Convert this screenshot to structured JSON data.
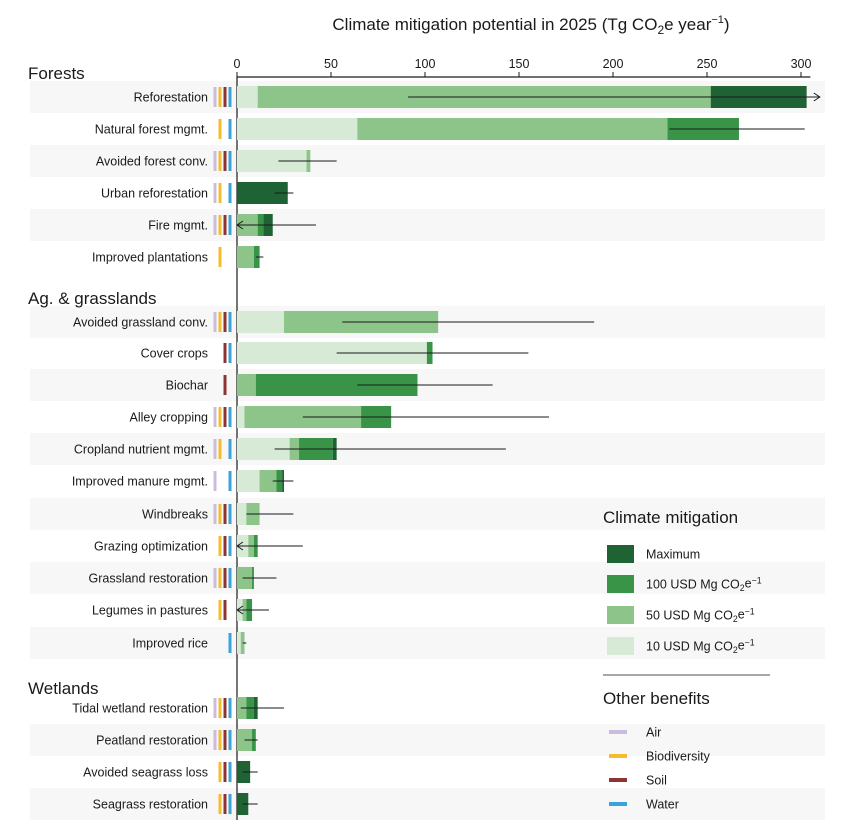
{
  "chart_data": {
    "type": "bar",
    "title": "Climate mitigation potential in 2025 (Tg CO₂e year⁻¹)",
    "title_parts": [
      "Climate mitigation potential in 2025 (Tg CO",
      "2",
      "e year",
      "−1",
      ")"
    ],
    "xlim": [
      0,
      305
    ],
    "xticks": [
      0,
      50,
      100,
      150,
      200,
      250,
      300
    ],
    "grid": false,
    "orientation": "horizontal",
    "stack_levels": [
      "10 USD Mg CO₂e⁻¹",
      "50 USD Mg CO₂e⁻¹",
      "100 USD Mg CO₂e⁻¹",
      "Maximum"
    ],
    "colors": {
      "10": "#d6ead6",
      "50": "#8cc48a",
      "100": "#3a9448",
      "max": "#1f6234",
      "air": "#cdbbdd",
      "biodiversity": "#f5bd2c",
      "soil": "#8c3434",
      "water": "#3aa3da",
      "band": "#f7f7f7"
    },
    "groups": [
      {
        "name": "Forests",
        "rows": [
          {
            "label": "Reforestation",
            "c10": 11,
            "c50": 252,
            "c100": 252,
            "max": 303,
            "err": [
              91,
              310
            ],
            "arrow": "right",
            "benefits": [
              "air",
              "biodiversity",
              "soil",
              "water"
            ]
          },
          {
            "label": "Natural forest mgmt.",
            "c10": 64,
            "c50": 229,
            "c100": 267,
            "max": 267,
            "err": [
              230,
              302
            ],
            "arrow": null,
            "benefits": [
              "biodiversity",
              "water"
            ]
          },
          {
            "label": "Avoided forest conv.",
            "c10": 37,
            "c50": 39,
            "c100": 39,
            "max": 39,
            "err": [
              22,
              53
            ],
            "arrow": null,
            "benefits": [
              "air",
              "biodiversity",
              "soil",
              "water"
            ]
          },
          {
            "label": "Urban reforestation",
            "c10": 0,
            "c50": 0,
            "c100": 0,
            "max": 27,
            "err": [
              20,
              30
            ],
            "arrow": null,
            "benefits": [
              "air",
              "biodiversity",
              "water"
            ]
          },
          {
            "label": "Fire mgmt.",
            "c10": 0,
            "c50": 11,
            "c100": 14,
            "max": 19,
            "err": [
              0,
              42
            ],
            "arrow": "left",
            "benefits": [
              "air",
              "biodiversity",
              "soil",
              "water"
            ]
          },
          {
            "label": "Improved plantations",
            "c10": 0,
            "c50": 9,
            "c100": 12,
            "max": 12,
            "err": [
              10,
              14
            ],
            "arrow": null,
            "benefits": [
              "biodiversity"
            ]
          }
        ]
      },
      {
        "name": "Ag. & grasslands",
        "rows": [
          {
            "label": "Avoided grassland conv.",
            "c10": 25,
            "c50": 107,
            "c100": 107,
            "max": 107,
            "err": [
              56,
              190
            ],
            "arrow": null,
            "benefits": [
              "air",
              "biodiversity",
              "soil",
              "water"
            ]
          },
          {
            "label": "Cover crops",
            "c10": 101,
            "c50": 101,
            "c100": 104,
            "max": 104,
            "err": [
              53,
              155
            ],
            "arrow": null,
            "benefits": [
              "soil",
              "water"
            ]
          },
          {
            "label": "Biochar",
            "c10": 0,
            "c50": 10,
            "c100": 96,
            "max": 96,
            "err": [
              64,
              136
            ],
            "arrow": null,
            "benefits": [
              "soil"
            ]
          },
          {
            "label": "Alley cropping",
            "c10": 4,
            "c50": 66,
            "c100": 82,
            "max": 82,
            "err": [
              35,
              166
            ],
            "arrow": null,
            "benefits": [
              "air",
              "biodiversity",
              "soil",
              "water"
            ]
          },
          {
            "label": "Cropland nutrient mgmt.",
            "c10": 28,
            "c50": 33,
            "c100": 51,
            "max": 53,
            "err": [
              20,
              143
            ],
            "arrow": null,
            "benefits": [
              "air",
              "biodiversity",
              "water"
            ]
          },
          {
            "label": "Improved manure mgmt.",
            "c10": 12,
            "c50": 21,
            "c100": 24,
            "max": 25,
            "err": [
              19,
              30
            ],
            "arrow": null,
            "benefits": [
              "air",
              "water"
            ]
          },
          {
            "label": "Windbreaks",
            "c10": 5,
            "c50": 12,
            "c100": 12,
            "max": 12,
            "err": [
              5,
              30
            ],
            "arrow": null,
            "benefits": [
              "air",
              "biodiversity",
              "soil",
              "water"
            ]
          },
          {
            "label": "Grazing optimization",
            "c10": 6,
            "c50": 9,
            "c100": 11,
            "max": 11,
            "err": [
              0,
              35
            ],
            "arrow": "left",
            "benefits": [
              "biodiversity",
              "soil",
              "water"
            ]
          },
          {
            "label": "Grassland restoration",
            "c10": 0,
            "c50": 8,
            "c100": 9,
            "max": 9,
            "err": [
              3,
              21
            ],
            "arrow": null,
            "benefits": [
              "air",
              "biodiversity",
              "soil",
              "water"
            ]
          },
          {
            "label": "Legumes in pastures",
            "c10": 3,
            "c50": 5,
            "c100": 8,
            "max": 8,
            "err": [
              0,
              17
            ],
            "arrow": "left",
            "benefits": [
              "biodiversity",
              "soil"
            ]
          },
          {
            "label": "Improved rice",
            "c10": 2,
            "c50": 4,
            "c100": 4,
            "max": 4,
            "err": [
              3,
              5
            ],
            "arrow": null,
            "benefits": [
              "water"
            ]
          }
        ]
      },
      {
        "name": "Wetlands",
        "rows": [
          {
            "label": "Tidal wetland restoration",
            "c10": 0,
            "c50": 5,
            "c100": 9,
            "max": 11,
            "err": [
              2,
              25
            ],
            "arrow": null,
            "benefits": [
              "air",
              "biodiversity",
              "soil",
              "water"
            ]
          },
          {
            "label": "Peatland restoration",
            "c10": 0,
            "c50": 8,
            "c100": 10,
            "max": 10,
            "err": [
              4,
              11
            ],
            "arrow": null,
            "benefits": [
              "air",
              "biodiversity",
              "soil",
              "water"
            ]
          },
          {
            "label": "Avoided seagrass loss",
            "c10": 0,
            "c50": 0,
            "c100": 0,
            "max": 7,
            "err": [
              3,
              11
            ],
            "arrow": null,
            "benefits": [
              "biodiversity",
              "soil",
              "water"
            ]
          },
          {
            "label": "Seagrass restoration",
            "c10": 0,
            "c50": 0,
            "c100": 0,
            "max": 6,
            "err": [
              3,
              11
            ],
            "arrow": null,
            "benefits": [
              "biodiversity",
              "soil",
              "water"
            ]
          }
        ]
      }
    ],
    "legend": {
      "position": "bottom-right",
      "mitigation_title": "Climate mitigation",
      "mitigation_items": [
        {
          "key": "max",
          "parts": [
            "Maximum"
          ]
        },
        {
          "key": "100",
          "parts": [
            "100 USD Mg CO",
            "2",
            "e",
            "−1"
          ]
        },
        {
          "key": "50",
          "parts": [
            "50 USD Mg CO",
            "2",
            "e",
            "−1"
          ]
        },
        {
          "key": "10",
          "parts": [
            "10 USD Mg CO",
            "2",
            "e",
            "−1"
          ]
        }
      ],
      "benefits_title": "Other benefits",
      "benefit_items": [
        {
          "key": "air",
          "label": "Air"
        },
        {
          "key": "biodiversity",
          "label": "Biodiversity"
        },
        {
          "key": "soil",
          "label": "Soil"
        },
        {
          "key": "water",
          "label": "Water"
        }
      ]
    }
  }
}
